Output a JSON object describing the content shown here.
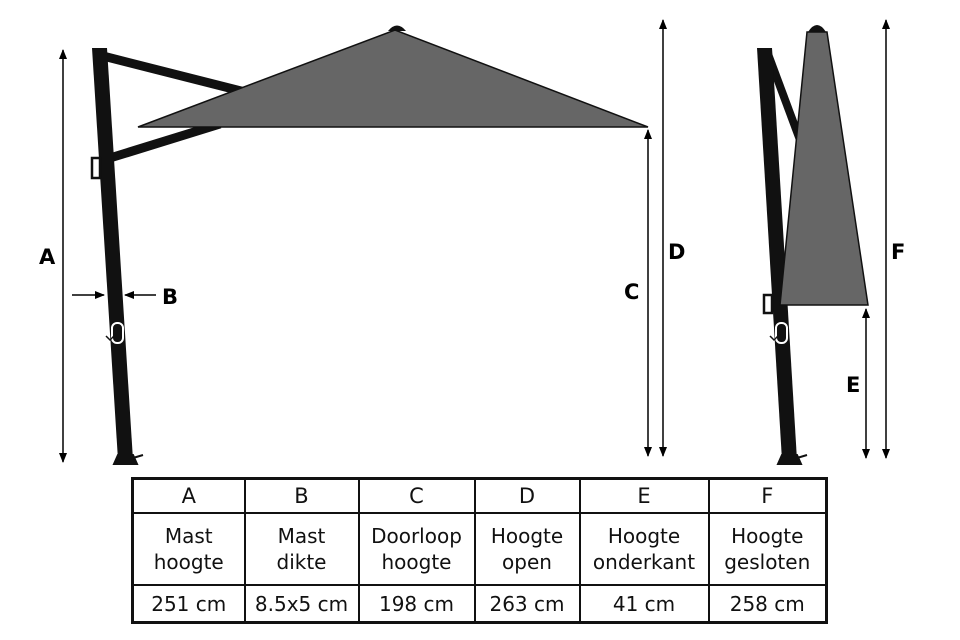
{
  "diagram": {
    "labels": {
      "A": "A",
      "B": "B",
      "C": "C",
      "D": "D",
      "E": "E",
      "F": "F"
    },
    "colors": {
      "canopy": "#666666",
      "frame": "#111111"
    }
  },
  "table": {
    "columns": [
      {
        "letter": "A",
        "line1": "Mast",
        "line2": "hoogte",
        "value": "251 cm"
      },
      {
        "letter": "B",
        "line1": "Mast",
        "line2": "dikte",
        "value": "8.5x5 cm"
      },
      {
        "letter": "C",
        "line1": "Doorloop",
        "line2": "hoogte",
        "value": "198 cm"
      },
      {
        "letter": "D",
        "line1": "Hoogte",
        "line2": "open",
        "value": "263 cm"
      },
      {
        "letter": "E",
        "line1": "Hoogte",
        "line2": "onderkant",
        "value": "41 cm"
      },
      {
        "letter": "F",
        "line1": "Hoogte",
        "line2": "gesloten",
        "value": "258 cm"
      }
    ]
  }
}
